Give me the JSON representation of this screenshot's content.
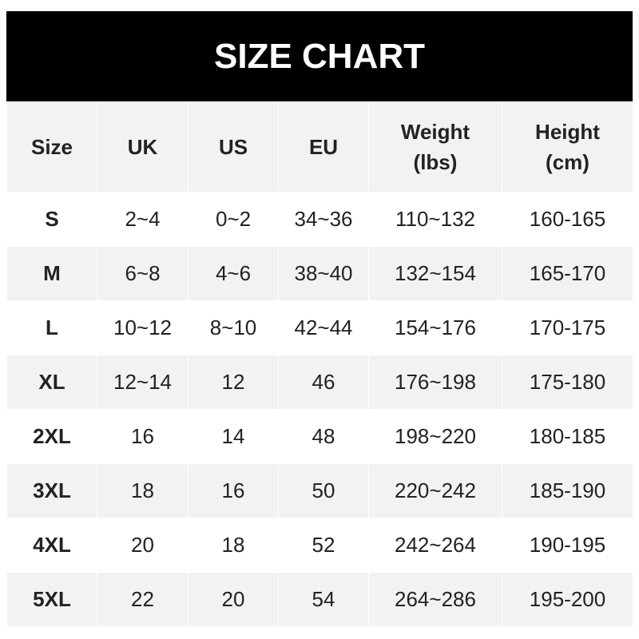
{
  "title": "SIZE CHART",
  "headers": [
    "Size",
    "UK",
    "US",
    "EU",
    "Weight\n(lbs)",
    "Height\n(cm)"
  ],
  "headers_lines": [
    [
      "Size"
    ],
    [
      "UK"
    ],
    [
      "US"
    ],
    [
      "EU"
    ],
    [
      "Weight",
      "(lbs)"
    ],
    [
      "Height",
      "(cm)"
    ]
  ],
  "rows": [
    [
      "S",
      "2~4",
      "0~2",
      "34~36",
      "110~132",
      "160-165"
    ],
    [
      "M",
      "6~8",
      "4~6",
      "38~40",
      "132~154",
      "165-170"
    ],
    [
      "L",
      "10~12",
      "8~10",
      "42~44",
      "154~176",
      "170-175"
    ],
    [
      "XL",
      "12~14",
      "12",
      "46",
      "176~198",
      "175-180"
    ],
    [
      "2XL",
      "16",
      "14",
      "48",
      "198~220",
      "180-185"
    ],
    [
      "3XL",
      "18",
      "16",
      "50",
      "220~242",
      "185-190"
    ],
    [
      "4XL",
      "20",
      "18",
      "52",
      "242~264",
      "190-195"
    ],
    [
      "5XL",
      "22",
      "20",
      "54",
      "264~286",
      "195-200"
    ]
  ]
}
